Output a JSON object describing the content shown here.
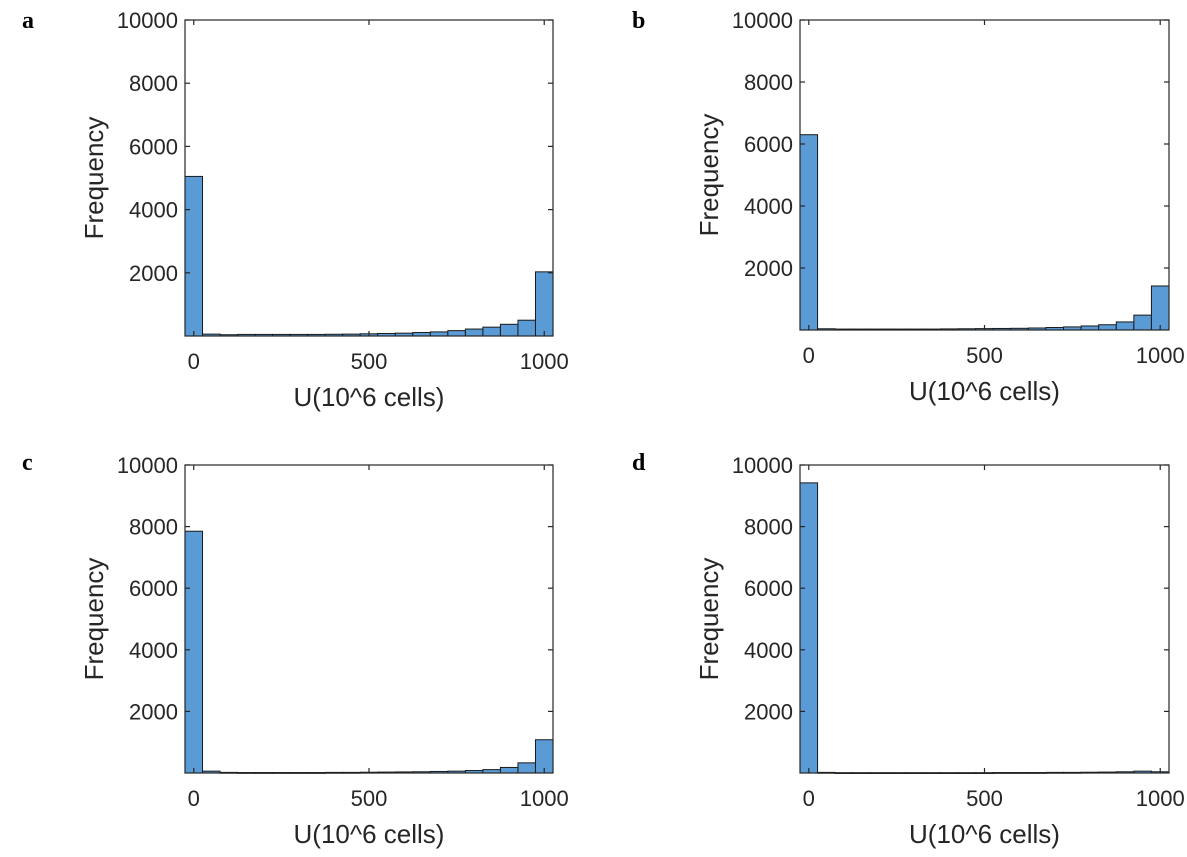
{
  "chart_data": [
    {
      "panel": "a",
      "type": "bar",
      "xlabel": "U(10^6 cells)",
      "ylabel": "Frequency",
      "xlim": [
        -25,
        1025
      ],
      "ylim": [
        0,
        10000
      ],
      "xticks": [
        0,
        500,
        1000
      ],
      "yticks": [
        2000,
        4000,
        6000,
        8000,
        10000
      ],
      "bin_edges": [
        -25,
        25,
        75,
        125,
        175,
        225,
        275,
        325,
        375,
        425,
        475,
        525,
        575,
        625,
        675,
        725,
        775,
        825,
        875,
        925,
        975,
        1025
      ],
      "values": [
        5050,
        60,
        40,
        50,
        50,
        50,
        50,
        50,
        55,
        60,
        70,
        80,
        90,
        110,
        130,
        170,
        220,
        280,
        370,
        500,
        2030
      ],
      "grid": false,
      "color": "#5b9bd5"
    },
    {
      "panel": "b",
      "type": "bar",
      "xlabel": "U(10^6 cells)",
      "ylabel": "Frequency",
      "xlim": [
        -25,
        1025
      ],
      "ylim": [
        0,
        10000
      ],
      "xticks": [
        0,
        500,
        1000
      ],
      "yticks": [
        2000,
        4000,
        6000,
        8000,
        10000
      ],
      "bin_edges": [
        -25,
        25,
        75,
        125,
        175,
        225,
        275,
        325,
        375,
        425,
        475,
        525,
        575,
        625,
        675,
        725,
        775,
        825,
        875,
        925,
        975,
        1025
      ],
      "values": [
        6300,
        40,
        30,
        30,
        30,
        30,
        30,
        30,
        35,
        40,
        45,
        50,
        55,
        65,
        80,
        100,
        130,
        170,
        260,
        480,
        1420
      ],
      "grid": false,
      "color": "#5b9bd5"
    },
    {
      "panel": "c",
      "type": "bar",
      "xlabel": "U(10^6 cells)",
      "ylabel": "Frequency",
      "xlim": [
        -25,
        1025
      ],
      "ylim": [
        0,
        10000
      ],
      "xticks": [
        0,
        500,
        1000
      ],
      "yticks": [
        2000,
        4000,
        6000,
        8000,
        10000
      ],
      "bin_edges": [
        -25,
        25,
        75,
        125,
        175,
        225,
        275,
        325,
        375,
        425,
        475,
        525,
        575,
        625,
        675,
        725,
        775,
        825,
        875,
        925,
        975,
        1025
      ],
      "values": [
        7850,
        60,
        20,
        15,
        15,
        15,
        15,
        15,
        20,
        20,
        25,
        30,
        35,
        40,
        50,
        60,
        80,
        110,
        180,
        330,
        1080
      ],
      "grid": false,
      "color": "#5b9bd5"
    },
    {
      "panel": "d",
      "type": "bar",
      "xlabel": "U(10^6 cells)",
      "ylabel": "Frequency",
      "xlim": [
        -25,
        1025
      ],
      "ylim": [
        0,
        10000
      ],
      "xticks": [
        0,
        500,
        1000
      ],
      "yticks": [
        2000,
        4000,
        6000,
        8000,
        10000
      ],
      "bin_edges": [
        -25,
        25,
        75,
        125,
        175,
        225,
        275,
        325,
        375,
        425,
        475,
        525,
        575,
        625,
        675,
        725,
        775,
        825,
        875,
        925,
        975,
        1025
      ],
      "values": [
        9420,
        20,
        10,
        10,
        10,
        10,
        10,
        10,
        10,
        10,
        10,
        15,
        15,
        15,
        20,
        20,
        25,
        30,
        40,
        60,
        40
      ],
      "grid": false,
      "color": "#5b9bd5"
    }
  ]
}
